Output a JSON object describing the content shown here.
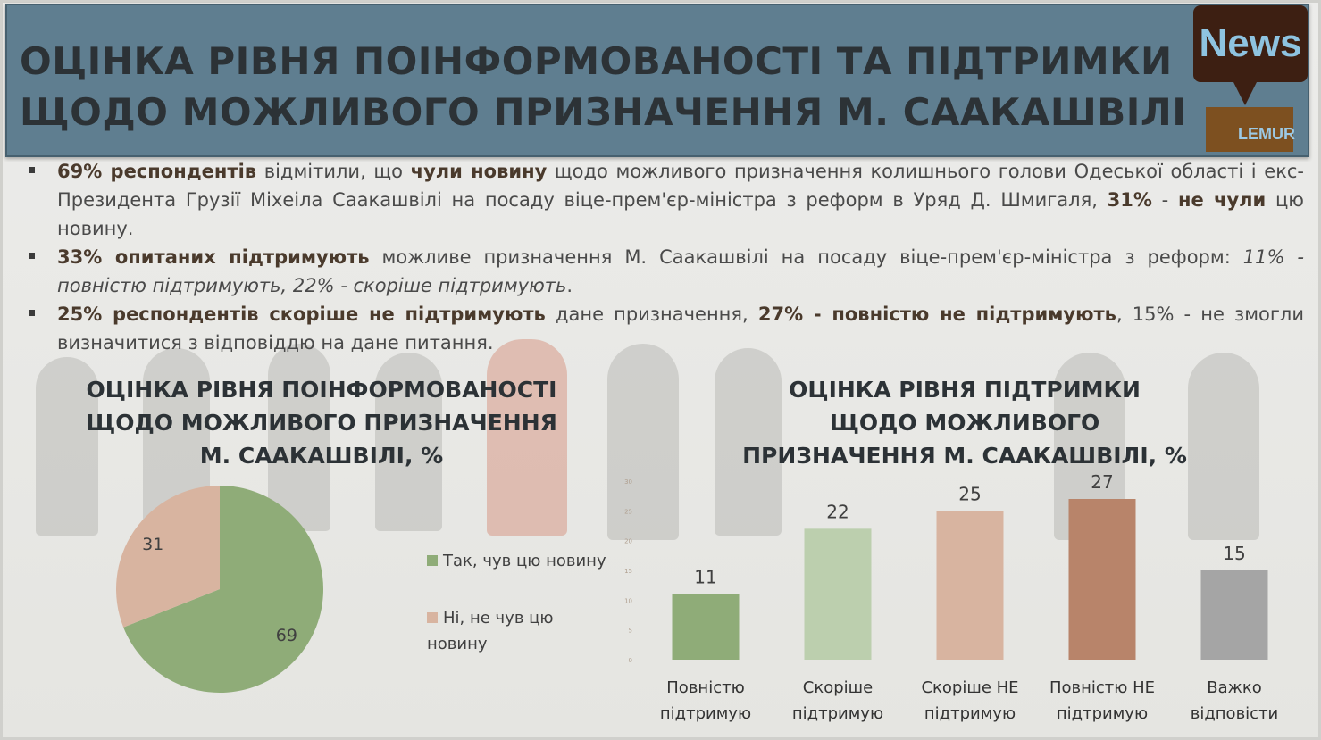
{
  "header": {
    "title_line1": "ОЦІНКА РІВНЯ ПОІНФОРМОВАНОСТІ ТА ПІДТРИМКИ",
    "title_line2": "ЩОДО МОЖЛИВОГО ПРИЗНАЧЕННЯ М. СААКАШВІЛІ"
  },
  "logo": {
    "news": "News",
    "brand": "LEMUR",
    "colors": {
      "bubble": "#3d1f12",
      "text": "#8ec3e0",
      "brand_bg": "#7d5020"
    }
  },
  "bullets": [
    {
      "b1": "69% респондентів",
      "t1": " відмітили, що ",
      "b2": "чули новину",
      "t2": " щодо можливого призначення колишнього голови Одеської області і екс-Президента Грузії Міхеіла Саакашвілі на посаду віце-прем'єр-міністра з реформ в Уряд Д. Шмигаля, ",
      "b3": "31%",
      "t3": " - ",
      "b4": "не чули",
      "t4": " цю новину."
    },
    {
      "b1": "33% опитаних підтримують",
      "t1": " можливе призначення М. Саакашвілі на посаду віце-прем'єр-міністра з реформ: ",
      "i1": "11% - повністю підтримують, 22% - скоріше підтримують",
      "t2": "."
    },
    {
      "b1": "25% респондентів скоріше не підтримують",
      "t1": " дане призначення, ",
      "b2": "27% - повністю не підтримують",
      "t2": ", 15% - не змогли визначитися з відповіддю на дане питання."
    }
  ],
  "chart_data": [
    {
      "type": "pie",
      "title": "ОЦІНКА РІВНЯ ПОІНФОРМОВАНОСТІ ЩОДО МОЖЛИВОГО ПРИЗНАЧЕННЯ М. СААКАШВІЛІ, %",
      "categories": [
        "Так, чув цю новину",
        "Ні, не чув цю новину"
      ],
      "values": [
        69,
        31
      ],
      "colors": [
        "#8fac78",
        "#d8b4a0"
      ],
      "legend": "right"
    },
    {
      "type": "bar",
      "title": "ОЦІНКА РІВНЯ ПІДТРИМКИ ЩОДО МОЖЛИВОГО ПРИЗНАЧЕННЯ М. СААКАШВІЛІ, %",
      "categories": [
        "Повністю підтримую",
        "Скоріше підтримую",
        "Скоріше НЕ підтримую",
        "Повністю НЕ підтримую",
        "Важко відповісти"
      ],
      "values": [
        11,
        22,
        25,
        27,
        15
      ],
      "colors": [
        "#8fac78",
        "#bccfae",
        "#d8b4a0",
        "#b8846a",
        "#a5a5a5"
      ],
      "ylim": [
        0,
        30
      ],
      "yticks": [
        0,
        5,
        10,
        15,
        20,
        25,
        30
      ]
    }
  ]
}
